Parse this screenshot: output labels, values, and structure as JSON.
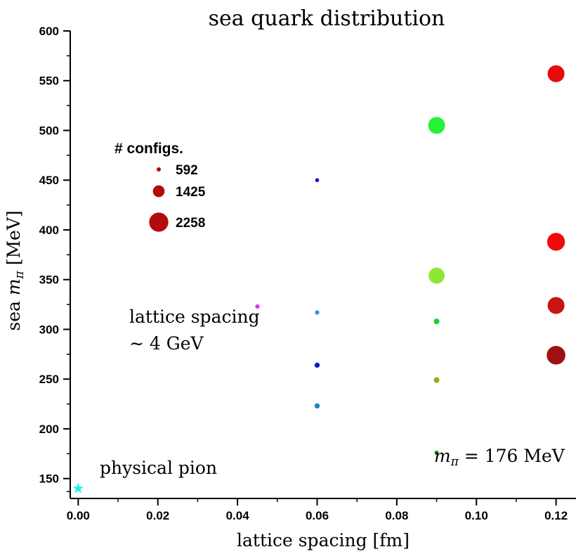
{
  "chart_data": {
    "type": "scatter",
    "title": "sea quark distribution",
    "xlabel": "lattice spacing [fm]",
    "ylabel_prefix": "sea ",
    "ylabel_var": "m",
    "ylabel_sub": "π",
    "ylabel_suffix": " [MeV]",
    "xlim": [
      -0.002,
      0.125
    ],
    "ylim": [
      130,
      600
    ],
    "xticks": [
      0.0,
      0.02,
      0.04,
      0.06,
      0.08,
      0.1,
      0.12
    ],
    "xtick_labels": [
      "0.00",
      "0.02",
      "0.04",
      "0.06",
      "0.08",
      "0.10",
      "0.12"
    ],
    "yticks": [
      150,
      200,
      250,
      300,
      350,
      400,
      450,
      500,
      550,
      600
    ],
    "ytick_labels": [
      "150",
      "200",
      "250",
      "300",
      "350",
      "400",
      "450",
      "500",
      "550",
      "600"
    ],
    "points": [
      {
        "x": 0.045,
        "y": 323,
        "configs": 600,
        "color": "#e02cff"
      },
      {
        "x": 0.06,
        "y": 450,
        "configs": 560,
        "color": "#1414e0"
      },
      {
        "x": 0.06,
        "y": 317,
        "configs": 600,
        "color": "#2c8fe8"
      },
      {
        "x": 0.06,
        "y": 264,
        "configs": 700,
        "color": "#0a1bc8"
      },
      {
        "x": 0.06,
        "y": 223,
        "configs": 700,
        "color": "#1a86b8"
      },
      {
        "x": 0.09,
        "y": 505,
        "configs": 2000,
        "color": "#26f03a"
      },
      {
        "x": 0.09,
        "y": 354,
        "configs": 1900,
        "color": "#8ee832"
      },
      {
        "x": 0.09,
        "y": 308,
        "configs": 750,
        "color": "#1ed02a"
      },
      {
        "x": 0.09,
        "y": 249,
        "configs": 750,
        "color": "#8cae1c"
      },
      {
        "x": 0.09,
        "y": 176,
        "configs": 600,
        "color": "#14961a"
      },
      {
        "x": 0.12,
        "y": 557,
        "configs": 2000,
        "color": "#e60a0a"
      },
      {
        "x": 0.12,
        "y": 388,
        "configs": 2100,
        "color": "#f00a0a"
      },
      {
        "x": 0.12,
        "y": 324,
        "configs": 2000,
        "color": "#c81414"
      },
      {
        "x": 0.12,
        "y": 274,
        "configs": 2200,
        "color": "#a01010"
      }
    ],
    "physical_point": {
      "x": 0.0,
      "y": 140,
      "color": "#22f0f0",
      "label": "physical pion"
    },
    "legend": {
      "title": "# configs.",
      "color": "#b40a0a",
      "entries": [
        {
          "label": "592",
          "configs": 592
        },
        {
          "label": "1425",
          "configs": 1425
        },
        {
          "label": "2258",
          "configs": 2258
        }
      ]
    },
    "annotations": {
      "spacing_line1": "lattice spacing",
      "spacing_line2": "∼ 4 GeV",
      "mpi_var": "m",
      "mpi_sub": "π",
      "mpi_rest": " = 176 MeV"
    }
  }
}
